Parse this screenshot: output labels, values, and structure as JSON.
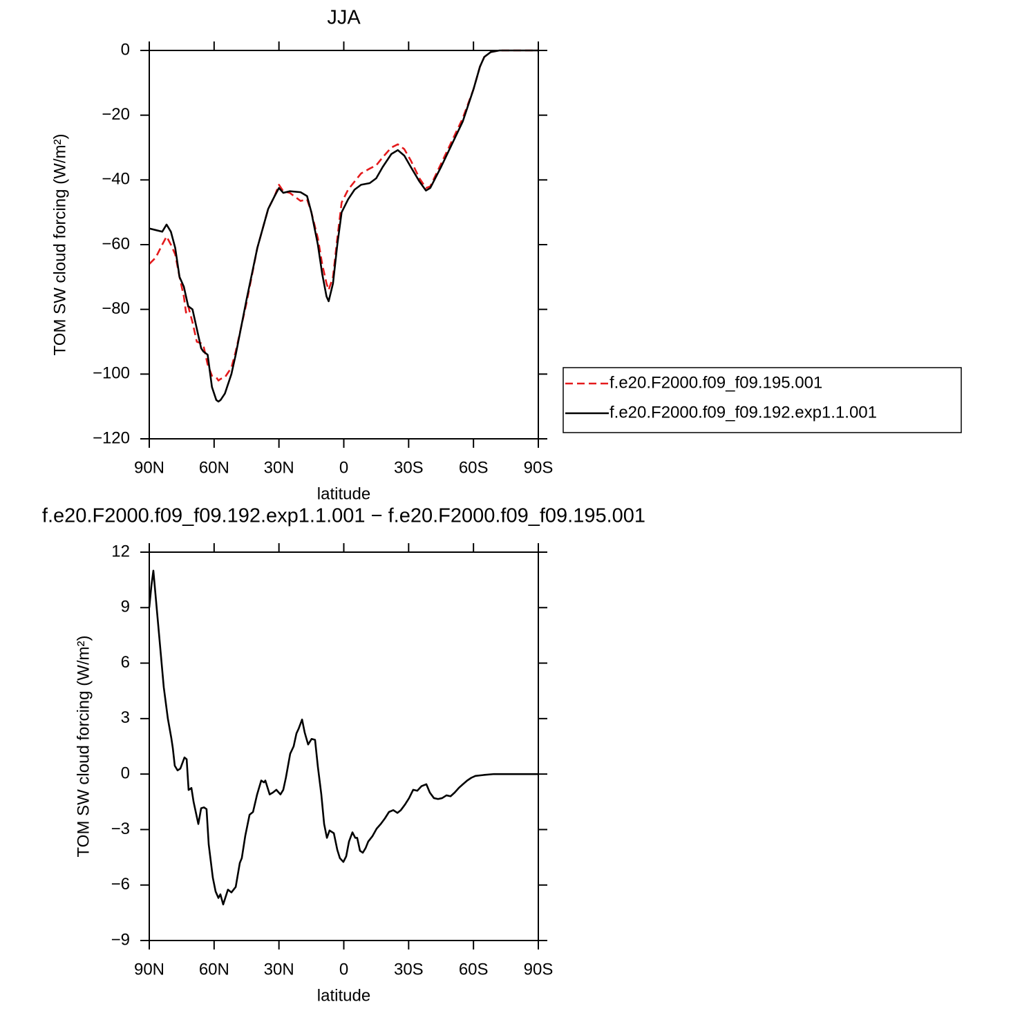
{
  "chart_data": [
    {
      "type": "line",
      "title": "JJA",
      "x_label": "latitude",
      "y_label": "TOM SW cloud forcing (W/m²)",
      "xlim": [
        90,
        -90
      ],
      "xticks": [
        {
          "value": 90,
          "label": "90N"
        },
        {
          "value": 60,
          "label": "60N"
        },
        {
          "value": 30,
          "label": "30N"
        },
        0,
        {
          "value": -30,
          "label": "30S"
        },
        {
          "value": -60,
          "label": "60S"
        },
        {
          "value": -90,
          "label": "90S"
        }
      ],
      "ylim": [
        -120,
        0
      ],
      "yticks": [
        {
          "value": -120,
          "label": "−120"
        },
        {
          "value": -100,
          "label": "−100"
        },
        {
          "value": -80,
          "label": "−80"
        },
        {
          "value": -60,
          "label": "−60"
        },
        {
          "value": -40,
          "label": "−40"
        },
        {
          "value": -20,
          "label": "−20"
        },
        0
      ],
      "legend": "right",
      "x": [
        90,
        87,
        84,
        82,
        80,
        78,
        76,
        74,
        73,
        72,
        70,
        68,
        66,
        65,
        63,
        61,
        59,
        58,
        57,
        55,
        52,
        50,
        45,
        40,
        35,
        32,
        30,
        28,
        25,
        20,
        17,
        15,
        12,
        10,
        8,
        7,
        5,
        3,
        1,
        -2,
        -5,
        -8,
        -12,
        -15,
        -18,
        -22,
        -25,
        -28,
        -31,
        -35,
        -38,
        -40,
        -45,
        -50,
        -55,
        -60,
        -63,
        -65,
        -68,
        -72,
        -90
      ],
      "series": [
        {
          "name": "f.e20.F2000.f09_f09.195.001",
          "color": "#e41a1c",
          "line_style": "dashed",
          "values": [
            -66,
            -64,
            -60,
            -57.5,
            -60,
            -63,
            -70,
            -76,
            -81,
            -79,
            -84,
            -90,
            -90.5,
            -91,
            -97,
            -100.5,
            -101,
            -102,
            -101.5,
            -101,
            -98,
            -93,
            -78,
            -61,
            -49,
            -45,
            -41.5,
            -43.5,
            -44,
            -46.5,
            -46,
            -50,
            -58,
            -66,
            -72,
            -74,
            -70,
            -58,
            -47,
            -43,
            -40.5,
            -38,
            -36.5,
            -35.5,
            -33,
            -30,
            -29,
            -30.5,
            -34,
            -39.5,
            -42.5,
            -42,
            -35,
            -28,
            -21,
            -12,
            -5,
            -2,
            -0.5,
            0,
            0
          ]
        },
        {
          "name": "f.e20.F2000.f09_f09.192.exp1.1.001",
          "color": "#000000",
          "line_style": "solid",
          "values": [
            -55,
            -55.5,
            -56,
            -53.8,
            -56,
            -61,
            -70,
            -73,
            -76,
            -79,
            -80,
            -86,
            -92,
            -93,
            -94,
            -104,
            -108,
            -108.5,
            -108,
            -106,
            -100,
            -94,
            -77,
            -61,
            -49,
            -45,
            -42.5,
            -44,
            -43.5,
            -43.8,
            -45,
            -50,
            -60,
            -69,
            -76,
            -77.5,
            -72,
            -60,
            -50,
            -46,
            -43,
            -41.5,
            -41,
            -39.5,
            -36,
            -32,
            -30.8,
            -32.5,
            -36,
            -40.5,
            -43.3,
            -42.5,
            -36,
            -29,
            -22,
            -12,
            -5,
            -2,
            -0.5,
            0,
            0
          ]
        }
      ]
    },
    {
      "type": "line",
      "title": "f.e20.F2000.f09_f09.192.exp1.1.001 − f.e20.F2000.f09_f09.195.001",
      "x_label": "latitude",
      "y_label": "TOM SW cloud forcing (W/m²)",
      "xlim": [
        90,
        -90
      ],
      "xticks": [
        {
          "value": 90,
          "label": "90N"
        },
        {
          "value": 60,
          "label": "60N"
        },
        {
          "value": 30,
          "label": "30N"
        },
        0,
        {
          "value": -30,
          "label": "30S"
        },
        {
          "value": -60,
          "label": "60S"
        },
        {
          "value": -90,
          "label": "90S"
        }
      ],
      "ylim": [
        -9,
        12
      ],
      "yticks": [
        {
          "value": -9,
          "label": "−9"
        },
        {
          "value": -6,
          "label": "−6"
        },
        {
          "value": -3,
          "label": "−3"
        },
        0,
        3,
        6,
        9,
        12
      ],
      "color": "#000000",
      "x": [
        90,
        89.0,
        88.1,
        86.2,
        83.3,
        81.4,
        79.8,
        79.1,
        78.2,
        76.9,
        75.6,
        73.7,
        72.7,
        71.8,
        70.5,
        69.5,
        67.3,
        66.0,
        64.7,
        63.5,
        62.5,
        60.6,
        59.3,
        58.0,
        57.1,
        55.8,
        53.6,
        52.0,
        50.0,
        48.1,
        47.2,
        45.6,
        43.6,
        42.0,
        40.1,
        38.2,
        36.9,
        36.3,
        34.3,
        32.8,
        31.2,
        29.3,
        28.0,
        26.8,
        24.8,
        23.2,
        21.9,
        20.9,
        19.3,
        18.1,
        16.5,
        14.9,
        13.3,
        12.0,
        10.4,
        9.1,
        7.8,
        6.6,
        4.6,
        3.0,
        1.8,
        0.2,
        -1.1,
        -2.4,
        -4.0,
        -5.3,
        -6.2,
        -7.5,
        -8.8,
        -10.1,
        -11.3,
        -13.3,
        -15.2,
        -17.1,
        -19.0,
        -20.9,
        -22.9,
        -24.8,
        -26.4,
        -28.3,
        -30.2,
        -32.1,
        -34.0,
        -36.0,
        -38.2,
        -39.8,
        -41.7,
        -43.6,
        -45.5,
        -47.5,
        -49.4,
        -51.3,
        -53.2,
        -55.1,
        -57.1,
        -59.0,
        -60.9,
        -64.7,
        -69.5,
        -90
      ],
      "values": [
        9.0,
        10.2,
        11.0,
        8.5,
        4.7,
        3.0,
        1.95,
        1.4,
        0.45,
        0.2,
        0.3,
        0.9,
        0.8,
        -0.86,
        -0.75,
        -1.5,
        -2.7,
        -1.85,
        -1.8,
        -1.9,
        -3.8,
        -5.6,
        -6.35,
        -6.7,
        -6.5,
        -7.05,
        -6.25,
        -6.4,
        -6.1,
        -4.8,
        -4.55,
        -3.35,
        -2.2,
        -2.05,
        -1.1,
        -0.35,
        -0.45,
        -0.35,
        -1.1,
        -1.0,
        -0.85,
        -1.1,
        -0.85,
        -0.2,
        1.1,
        1.5,
        2.2,
        2.45,
        2.95,
        2.25,
        1.6,
        1.9,
        1.85,
        0.4,
        -1.1,
        -2.7,
        -3.45,
        -3.05,
        -3.2,
        -4.1,
        -4.55,
        -4.75,
        -4.45,
        -3.65,
        -3.15,
        -3.45,
        -3.45,
        -4.15,
        -4.25,
        -4.0,
        -3.65,
        -3.35,
        -2.95,
        -2.7,
        -2.4,
        -2.05,
        -1.95,
        -2.1,
        -1.95,
        -1.65,
        -1.3,
        -0.85,
        -0.9,
        -0.65,
        -0.55,
        -1.0,
        -1.3,
        -1.35,
        -1.3,
        -1.15,
        -1.2,
        -1.0,
        -0.75,
        -0.55,
        -0.35,
        -0.2,
        -0.1,
        -0.05,
        0,
        0
      ]
    }
  ]
}
